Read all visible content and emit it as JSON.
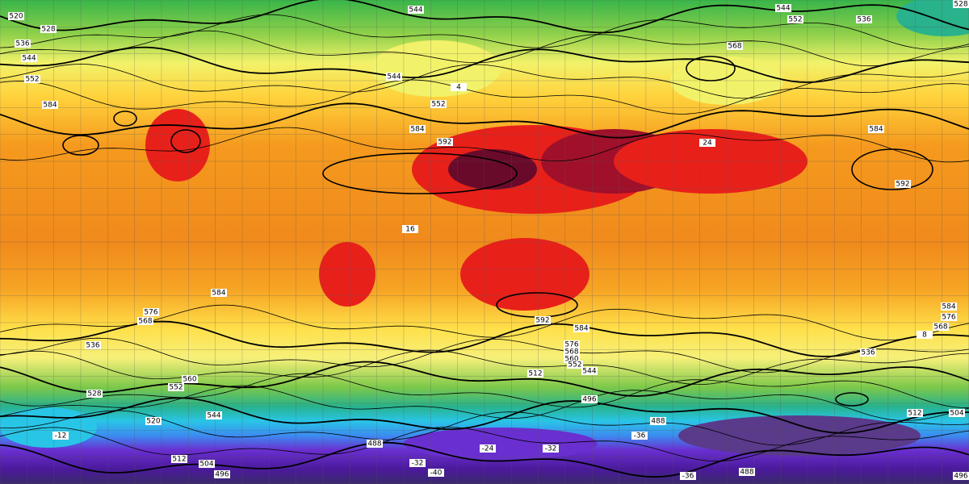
{
  "map": {
    "height_labels": [
      "520",
      "528",
      "536",
      "544",
      "552",
      "584",
      "544",
      "544",
      "552",
      "536",
      "528",
      "568",
      "544",
      "552",
      "584",
      "592",
      "584",
      "592",
      "584",
      "576",
      "568",
      "536",
      "592",
      "584",
      "576",
      "568",
      "560",
      "552",
      "544",
      "512",
      "496",
      "488",
      "536",
      "584",
      "576",
      "568",
      "528",
      "520",
      "544",
      "512",
      "504",
      "496",
      "488",
      "488",
      "512",
      "504",
      "496",
      "560",
      "552"
    ],
    "temperature_labels": [
      "-12",
      "-24",
      "-32",
      "-40",
      "-36",
      "16",
      "24",
      "8",
      "-36",
      "-32",
      "4"
    ]
  }
}
